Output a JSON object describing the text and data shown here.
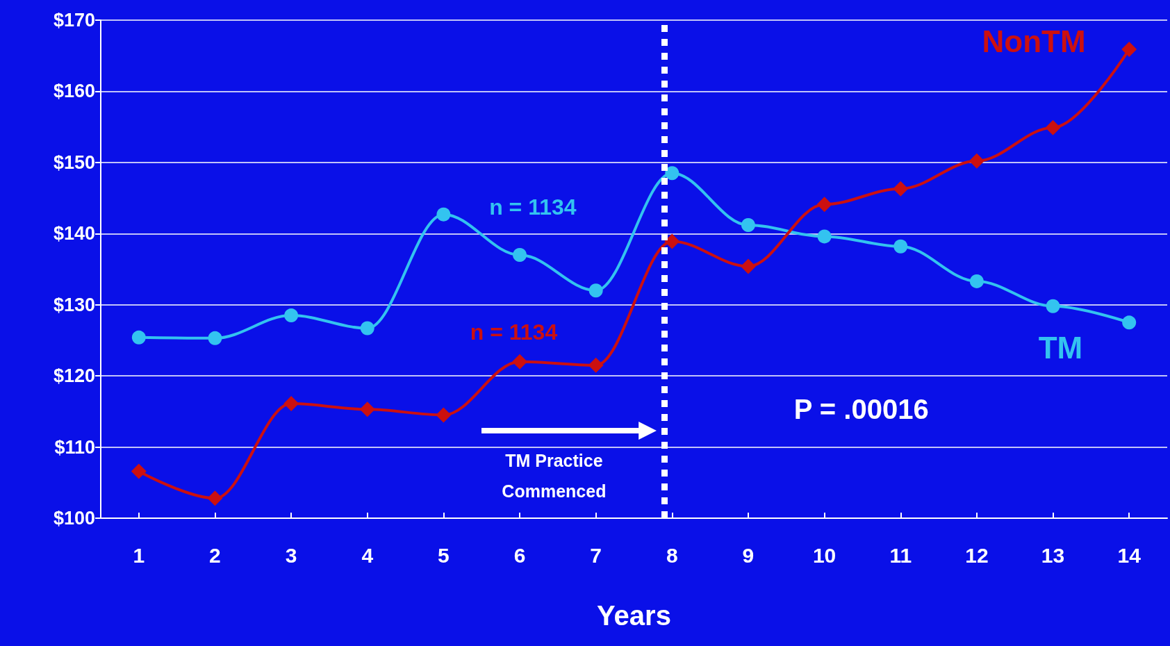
{
  "chart_data": {
    "type": "line",
    "xlabel": "Years",
    "x": [
      1,
      2,
      3,
      4,
      5,
      6,
      7,
      8,
      9,
      10,
      11,
      12,
      13,
      14
    ],
    "xlim": [
      0.5,
      14.5
    ],
    "xticks": [
      1,
      2,
      3,
      4,
      5,
      6,
      7,
      8,
      9,
      10,
      11,
      12,
      13,
      14
    ],
    "ylim": [
      100,
      170
    ],
    "yticks": [
      {
        "value": 100,
        "label": "$100"
      },
      {
        "value": 110,
        "label": "$110"
      },
      {
        "value": 120,
        "label": "$120"
      },
      {
        "value": 130,
        "label": "$130"
      },
      {
        "value": 140,
        "label": "$140"
      },
      {
        "value": 150,
        "label": "$150"
      },
      {
        "value": 160,
        "label": "$160"
      },
      {
        "value": 170,
        "label": "$170"
      }
    ],
    "grid": "y",
    "legend": false,
    "line_style": "solid",
    "series": [
      {
        "name": "TM",
        "color": "#33c3f0",
        "marker": "circle",
        "values": [
          125.4,
          125.3,
          128.5,
          126.7,
          142.7,
          137,
          132,
          148.5,
          141.2,
          139.6,
          138.2,
          133.3,
          129.8,
          127.5
        ]
      },
      {
        "name": "NonTM",
        "color": "#cc1010",
        "marker": "diamond",
        "values": [
          106.6,
          102.8,
          116.1,
          115.3,
          114.5,
          122,
          121.5,
          138.9,
          135.4,
          144.1,
          146.3,
          150.2,
          154.9,
          165.9
        ]
      }
    ],
    "ref_lines": [
      {
        "axis": "x",
        "value": 7.9,
        "color": "#ffffff",
        "line_style": "dotted"
      }
    ],
    "annotations": [
      "n = 1134",
      "n = 1134",
      "P = .00016",
      "TM Practice Commenced"
    ]
  }
}
